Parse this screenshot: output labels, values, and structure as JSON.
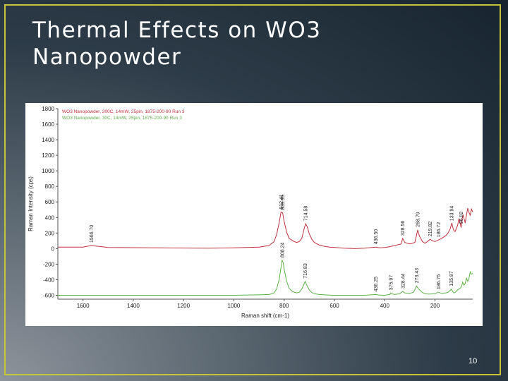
{
  "slide": {
    "title_line1": "Thermal Effects on WO3",
    "title_line2": "Nanopowder",
    "page_number": "10",
    "border_color": "#c7c43a"
  },
  "chart_data": {
    "type": "line",
    "xlabel": "Raman shift (cm-1)",
    "ylabel": "Raman Intensity (cps)",
    "xlim": [
      1700,
      50
    ],
    "ylim": [
      -650,
      1800
    ],
    "x_ticks": [
      1600,
      1400,
      1200,
      1000,
      800,
      600,
      400,
      200
    ],
    "y_ticks": [
      1800,
      1600,
      1400,
      1200,
      1000,
      800,
      600,
      400,
      200,
      0,
      -200,
      -400,
      -600
    ],
    "grid": false,
    "legend_position": "top-left",
    "series": [
      {
        "name": "WO3 Nanopowder, 200C, 14mW, 25pin, 1875-200-90 Run 3",
        "color": "#c0313f",
        "x": [
          1700,
          1600,
          1566.7,
          1500,
          1300,
          1100,
          1000,
          900,
          860,
          840,
          830,
          820,
          812.4,
          806,
          800,
          790,
          780,
          770,
          760,
          750,
          740,
          730,
          720,
          714.6,
          708,
          700,
          690,
          680,
          660,
          640,
          620,
          600,
          560,
          520,
          480,
          436.5,
          420,
          400,
          380,
          360,
          335,
          328.6,
          320,
          300,
          280,
          275,
          268.8,
          262,
          250,
          240,
          230,
          219.8,
          210,
          200,
          186.7,
          180,
          170,
          160,
          150,
          140,
          133,
          130,
          125,
          120,
          110,
          105,
          100,
          96,
          92,
          88,
          84,
          80,
          75,
          70,
          66.8,
          60,
          55,
          50
        ],
        "y": [
          20,
          20,
          40,
          15,
          10,
          5,
          10,
          20,
          40,
          90,
          180,
          330,
          470,
          460,
          350,
          210,
          130,
          110,
          90,
          80,
          90,
          130,
          260,
          320,
          280,
          190,
          120,
          80,
          45,
          30,
          20,
          15,
          5,
          0,
          5,
          20,
          10,
          15,
          25,
          40,
          60,
          130,
          80,
          60,
          80,
          150,
          240,
          160,
          90,
          70,
          90,
          120,
          100,
          90,
          110,
          120,
          140,
          160,
          190,
          250,
          330,
          280,
          230,
          220,
          300,
          380,
          330,
          270,
          390,
          430,
          380,
          330,
          430,
          520,
          480,
          430,
          510,
          470
        ]
      },
      {
        "name": "WO3 Nanopowder, 30C, 14mW, 25pin, 1875-200-90 Run 3",
        "color": "#5db04a",
        "x": [
          1700,
          1500,
          1300,
          1100,
          1000,
          900,
          860,
          840,
          830,
          820,
          812,
          808.2,
          804,
          800,
          790,
          780,
          770,
          760,
          750,
          740,
          730,
          720,
          716.8,
          710,
          700,
          690,
          680,
          660,
          640,
          620,
          600,
          560,
          520,
          480,
          436.3,
          420,
          400,
          380,
          376,
          370,
          360,
          340,
          328.4,
          320,
          300,
          285,
          273.4,
          265,
          250,
          240,
          230,
          220,
          200,
          186.8,
          180,
          170,
          160,
          150,
          140,
          135.9,
          130,
          125,
          120,
          110,
          100,
          95,
          90,
          85,
          80,
          75,
          70,
          66,
          60,
          55,
          50
        ],
        "y": [
          -600,
          -600,
          -600,
          -600,
          -600,
          -595,
          -590,
          -570,
          -520,
          -400,
          -230,
          -150,
          -180,
          -260,
          -420,
          -510,
          -545,
          -560,
          -570,
          -560,
          -520,
          -450,
          -420,
          -470,
          -530,
          -565,
          -580,
          -590,
          -595,
          -598,
          -600,
          -600,
          -600,
          -600,
          -590,
          -598,
          -600,
          -590,
          -570,
          -585,
          -590,
          -580,
          -550,
          -570,
          -575,
          -560,
          -480,
          -520,
          -565,
          -580,
          -585,
          -585,
          -580,
          -560,
          -570,
          -575,
          -570,
          -565,
          -540,
          -520,
          -550,
          -570,
          -565,
          -530,
          -510,
          -490,
          -430,
          -470,
          -450,
          -380,
          -420,
          -400,
          -300,
          -330,
          -320
        ]
      }
    ],
    "annotations": {
      "red": [
        {
          "x": 1566.7,
          "label": "1566.70"
        },
        {
          "x": 812.41,
          "label": "812.41"
        },
        {
          "x": 805.95,
          "label": "805.95"
        },
        {
          "x": 714.58,
          "label": "714.58"
        },
        {
          "x": 436.5,
          "label": "436.50"
        },
        {
          "x": 328.56,
          "label": "328.56"
        },
        {
          "x": 268.79,
          "label": "268.79"
        },
        {
          "x": 219.82,
          "label": "219.82"
        },
        {
          "x": 186.72,
          "label": "186.72"
        },
        {
          "x": 133.94,
          "label": "133.94"
        },
        {
          "x": 96.82,
          "label": "96.82"
        }
      ],
      "green": [
        {
          "x": 808.24,
          "label": "808.24"
        },
        {
          "x": 716.83,
          "label": "716.83"
        },
        {
          "x": 436.25,
          "label": "436.25"
        },
        {
          "x": 375.97,
          "label": "375.97"
        },
        {
          "x": 328.44,
          "label": "328.44"
        },
        {
          "x": 273.43,
          "label": "273.43"
        },
        {
          "x": 186.75,
          "label": "186.75"
        },
        {
          "x": 135.87,
          "label": "135.87"
        }
      ]
    }
  }
}
